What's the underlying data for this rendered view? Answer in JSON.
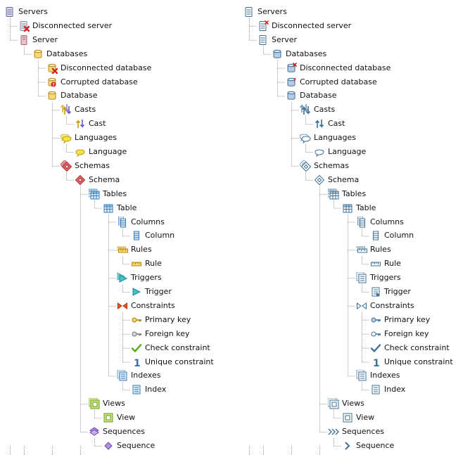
{
  "trees": [
    {
      "style": "color",
      "items": [
        {
          "label": "Servers",
          "icon": "servers-icon"
        },
        {
          "label": "Disconnected server",
          "icon": "disconnected-server-icon"
        },
        {
          "label": "Server",
          "icon": "server-icon"
        },
        {
          "label": "Databases",
          "icon": "databases-icon"
        },
        {
          "label": "Disconnected database",
          "icon": "disconnected-database-icon"
        },
        {
          "label": "Corrupted database",
          "icon": "corrupted-database-icon"
        },
        {
          "label": "Database",
          "icon": "database-icon"
        },
        {
          "label": "Casts",
          "icon": "casts-icon"
        },
        {
          "label": "Cast",
          "icon": "cast-icon"
        },
        {
          "label": "Languages",
          "icon": "languages-icon"
        },
        {
          "label": "Language",
          "icon": "language-icon"
        },
        {
          "label": "Schemas",
          "icon": "schemas-icon"
        },
        {
          "label": "Schema",
          "icon": "schema-icon"
        },
        {
          "label": "Tables",
          "icon": "tables-icon"
        },
        {
          "label": "Table",
          "icon": "table-icon"
        },
        {
          "label": "Columns",
          "icon": "columns-icon"
        },
        {
          "label": "Column",
          "icon": "column-icon"
        },
        {
          "label": "Rules",
          "icon": "rules-icon"
        },
        {
          "label": "Rule",
          "icon": "rule-icon"
        },
        {
          "label": "Triggers",
          "icon": "triggers-icon"
        },
        {
          "label": "Trigger",
          "icon": "trigger-icon"
        },
        {
          "label": "Constraints",
          "icon": "constraints-icon"
        },
        {
          "label": "Primary key",
          "icon": "primary-key-icon"
        },
        {
          "label": "Foreign key",
          "icon": "foreign-key-icon"
        },
        {
          "label": "Check constraint",
          "icon": "check-constraint-icon"
        },
        {
          "label": "Unique constraint",
          "icon": "unique-constraint-icon"
        },
        {
          "label": "Indexes",
          "icon": "indexes-icon"
        },
        {
          "label": "Index",
          "icon": "index-icon"
        },
        {
          "label": "Views",
          "icon": "views-icon"
        },
        {
          "label": "View",
          "icon": "view-icon"
        },
        {
          "label": "Sequences",
          "icon": "sequences-icon"
        },
        {
          "label": "Sequence",
          "icon": "sequence-icon"
        }
      ]
    },
    {
      "style": "mono",
      "items": [
        {
          "label": "Servers",
          "icon": "servers-icon"
        },
        {
          "label": "Disconnected server",
          "icon": "disconnected-server-icon"
        },
        {
          "label": "Server",
          "icon": "server-icon"
        },
        {
          "label": "Databases",
          "icon": "databases-icon"
        },
        {
          "label": "Disconnected database",
          "icon": "disconnected-database-icon"
        },
        {
          "label": "Corrupted database",
          "icon": "corrupted-database-icon"
        },
        {
          "label": "Database",
          "icon": "database-icon"
        },
        {
          "label": "Casts",
          "icon": "casts-icon"
        },
        {
          "label": "Cast",
          "icon": "cast-icon"
        },
        {
          "label": "Languages",
          "icon": "languages-icon"
        },
        {
          "label": "Language",
          "icon": "language-icon"
        },
        {
          "label": "Schemas",
          "icon": "schemas-icon"
        },
        {
          "label": "Schema",
          "icon": "schema-icon"
        },
        {
          "label": "Tables",
          "icon": "tables-icon"
        },
        {
          "label": "Table",
          "icon": "table-icon"
        },
        {
          "label": "Columns",
          "icon": "columns-icon"
        },
        {
          "label": "Column",
          "icon": "column-icon"
        },
        {
          "label": "Rules",
          "icon": "rules-icon"
        },
        {
          "label": "Rule",
          "icon": "rule-icon"
        },
        {
          "label": "Triggers",
          "icon": "triggers-icon"
        },
        {
          "label": "Trigger",
          "icon": "trigger-icon"
        },
        {
          "label": "Constraints",
          "icon": "constraints-icon"
        },
        {
          "label": "Primary key",
          "icon": "primary-key-icon"
        },
        {
          "label": "Foreign key",
          "icon": "foreign-key-icon"
        },
        {
          "label": "Check constraint",
          "icon": "check-constraint-icon"
        },
        {
          "label": "Unique constraint",
          "icon": "unique-constraint-icon"
        },
        {
          "label": "Indexes",
          "icon": "indexes-icon"
        },
        {
          "label": "Index",
          "icon": "index-icon"
        },
        {
          "label": "Views",
          "icon": "views-icon"
        },
        {
          "label": "View",
          "icon": "view-icon"
        },
        {
          "label": "Sequences",
          "icon": "sequences-icon"
        },
        {
          "label": "Sequence",
          "icon": "sequence-icon"
        }
      ]
    }
  ],
  "colors": {
    "tree_line": "#9a9a9a",
    "text": "#111111",
    "mono_icon": "#3d6f98",
    "mono_accent": "#b5cde3",
    "error_red": "#d62020"
  }
}
